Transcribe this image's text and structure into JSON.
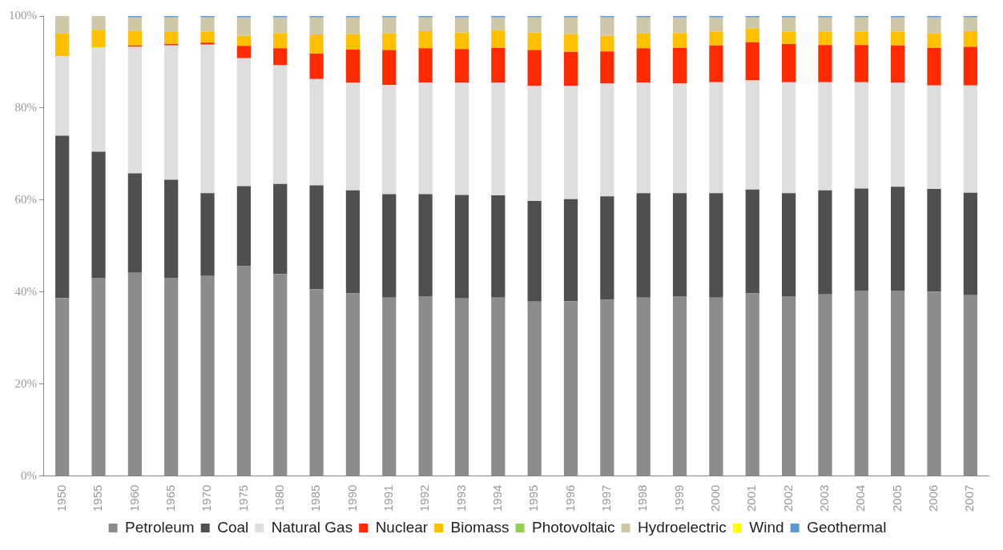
{
  "chart_data": {
    "type": "bar",
    "stacked": true,
    "categories": [
      "1950",
      "1955",
      "1960",
      "1965",
      "1970",
      "1975",
      "1980",
      "1985",
      "1990",
      "1991",
      "1992",
      "1993",
      "1994",
      "1995",
      "1996",
      "1997",
      "1998",
      "1999",
      "2000",
      "2001",
      "2002",
      "2003",
      "2004",
      "2005",
      "2006",
      "2007"
    ],
    "series": [
      {
        "name": "Petroleum",
        "color": "#8c8c8c",
        "values": [
          38.7,
          43.1,
          44.2,
          43.1,
          43.5,
          45.6,
          43.9,
          40.6,
          39.7,
          38.8,
          39.1,
          38.6,
          38.8,
          37.9,
          38.0,
          38.3,
          38.8,
          39.1,
          38.8,
          39.7,
          39.1,
          39.5,
          40.3,
          40.3,
          40.1,
          39.3
        ]
      },
      {
        "name": "Coal",
        "color": "#4f4f4f",
        "values": [
          35.3,
          27.4,
          21.6,
          21.3,
          18.0,
          17.4,
          19.6,
          22.6,
          22.4,
          22.5,
          22.2,
          22.5,
          22.2,
          21.9,
          22.2,
          22.5,
          22.7,
          22.4,
          22.7,
          22.6,
          22.4,
          22.6,
          22.2,
          22.6,
          22.3,
          22.3
        ]
      },
      {
        "name": "Natural Gas",
        "color": "#dedede",
        "values": [
          17.3,
          22.7,
          27.5,
          29.2,
          32.3,
          27.8,
          25.8,
          23.1,
          23.4,
          23.7,
          24.2,
          24.4,
          24.5,
          25.0,
          24.6,
          24.5,
          24.0,
          23.8,
          24.1,
          23.7,
          24.1,
          23.5,
          23.1,
          22.6,
          22.5,
          23.3
        ]
      },
      {
        "name": "Nuclear",
        "color": "#ff2a00",
        "values": [
          0,
          0,
          0.3,
          0.3,
          0.4,
          2.7,
          3.7,
          5.5,
          7.2,
          7.6,
          7.5,
          7.3,
          7.6,
          7.8,
          7.4,
          7.0,
          7.5,
          7.8,
          8.0,
          8.3,
          8.3,
          8.1,
          8.1,
          8.1,
          8.2,
          8.4
        ]
      },
      {
        "name": "Biomass",
        "color": "#ffc000",
        "values": [
          4.9,
          3.8,
          3.2,
          2.6,
          2.4,
          2.2,
          3.3,
          4.2,
          3.4,
          3.6,
          3.7,
          3.6,
          3.8,
          3.8,
          3.9,
          3.4,
          3.2,
          3.2,
          3.0,
          3.0,
          2.7,
          2.9,
          2.9,
          3.0,
          3.1,
          3.4
        ]
      },
      {
        "name": "Photovoltaic",
        "color": "#92d050",
        "values": [
          0,
          0,
          0,
          0,
          0,
          0,
          0,
          0,
          0,
          0,
          0,
          0,
          0,
          0,
          0,
          0,
          0,
          0,
          0,
          0,
          0,
          0,
          0,
          0,
          0,
          0
        ]
      },
      {
        "name": "Hydroelectric",
        "color": "#cfc8a8",
        "values": [
          3.8,
          3.0,
          2.9,
          3.2,
          3.1,
          4.0,
          3.4,
          3.7,
          3.6,
          3.5,
          3.0,
          3.3,
          2.8,
          3.3,
          3.6,
          4.0,
          3.5,
          3.4,
          3.1,
          2.4,
          3.1,
          3.1,
          3.1,
          3.1,
          3.5,
          3.0
        ]
      },
      {
        "name": "Wind",
        "color": "#ffff00",
        "values": [
          0,
          0,
          0,
          0,
          0,
          0,
          0,
          0,
          0,
          0,
          0,
          0,
          0,
          0,
          0,
          0,
          0,
          0,
          0,
          0,
          0,
          0,
          0,
          0,
          0,
          0
        ]
      },
      {
        "name": "Geothermal",
        "color": "#5b9bd5",
        "values": [
          0,
          0,
          0.3,
          0.3,
          0.3,
          0.3,
          0.3,
          0.3,
          0.3,
          0.3,
          0.3,
          0.3,
          0.3,
          0.3,
          0.3,
          0.3,
          0.3,
          0.3,
          0.3,
          0.3,
          0.3,
          0.3,
          0.3,
          0.3,
          0.3,
          0.3
        ]
      }
    ],
    "ylim": [
      0,
      100
    ],
    "yticks": [
      {
        "value": 0,
        "label": "0%"
      },
      {
        "value": 20,
        "label": "20%"
      },
      {
        "value": 40,
        "label": "40%"
      },
      {
        "value": 60,
        "label": "60%"
      },
      {
        "value": 80,
        "label": "80%"
      },
      {
        "value": 100,
        "label": "100%"
      }
    ],
    "grid": false,
    "legend": "bottom"
  }
}
